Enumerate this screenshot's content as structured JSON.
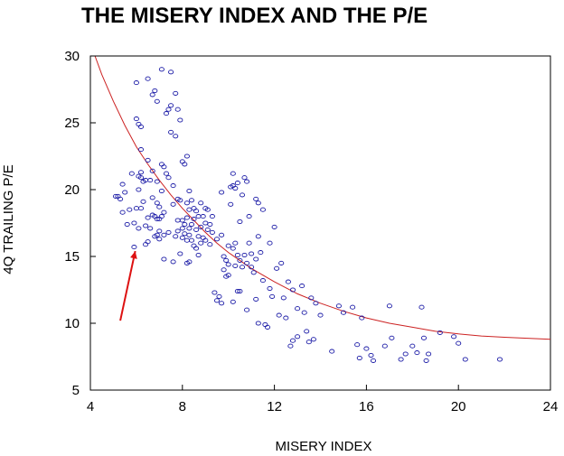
{
  "chart_data": {
    "type": "scatter",
    "title": "THE MISERY INDEX AND THE P/E",
    "xlabel": "MISERY INDEX",
    "ylabel": "4Q TRAILING P/E",
    "xlim": [
      4,
      24
    ],
    "ylim": [
      5,
      30
    ],
    "xticks": [
      4,
      8,
      12,
      16,
      20,
      24
    ],
    "yticks": [
      5,
      10,
      15,
      20,
      25,
      30
    ],
    "grid": false,
    "marker_color": "#1a1aa6",
    "curve_color": "#cc2222",
    "arrow_color": "#dd1111",
    "arrow_from": [
      5.3,
      10.2
    ],
    "arrow_to": [
      5.95,
      15.4
    ],
    "fit_curve": [
      [
        4.2,
        30.0
      ],
      [
        4.5,
        28.6
      ],
      [
        5,
        26.6
      ],
      [
        5.5,
        24.8
      ],
      [
        6,
        23.2
      ],
      [
        6.5,
        21.9
      ],
      [
        7,
        20.7
      ],
      [
        7.5,
        19.6
      ],
      [
        8,
        18.6
      ],
      [
        8.5,
        17.7
      ],
      [
        9,
        16.8
      ],
      [
        9.5,
        16.0
      ],
      [
        10,
        15.3
      ],
      [
        11,
        14.1
      ],
      [
        12,
        13.1
      ],
      [
        13,
        12.2
      ],
      [
        14,
        11.5
      ],
      [
        15,
        10.9
      ],
      [
        16,
        10.4
      ],
      [
        17,
        10.0
      ],
      [
        18,
        9.7
      ],
      [
        19,
        9.4
      ],
      [
        20,
        9.2
      ],
      [
        21,
        9.05
      ],
      [
        22,
        8.95
      ],
      [
        23,
        8.88
      ],
      [
        24,
        8.8
      ]
    ],
    "points": [
      [
        5.1,
        19.5
      ],
      [
        5.2,
        19.5
      ],
      [
        5.3,
        19.3
      ],
      [
        5.4,
        20.4
      ],
      [
        5.4,
        18.3
      ],
      [
        5.5,
        19.8
      ],
      [
        5.6,
        17.4
      ],
      [
        5.7,
        18.5
      ],
      [
        5.8,
        21.2
      ],
      [
        5.9,
        17.5
      ],
      [
        5.9,
        15.7
      ],
      [
        6.0,
        28.0
      ],
      [
        6.0,
        25.3
      ],
      [
        6.0,
        18.6
      ],
      [
        6.1,
        24.9
      ],
      [
        6.1,
        21.0
      ],
      [
        6.1,
        20.0
      ],
      [
        6.1,
        17.1
      ],
      [
        6.2,
        24.7
      ],
      [
        6.2,
        23.0
      ],
      [
        6.2,
        21.3
      ],
      [
        6.2,
        20.9
      ],
      [
        6.2,
        18.6
      ],
      [
        6.3,
        20.6
      ],
      [
        6.3,
        19.1
      ],
      [
        6.4,
        20.7
      ],
      [
        6.4,
        17.3
      ],
      [
        6.4,
        15.9
      ],
      [
        6.5,
        28.3
      ],
      [
        6.5,
        22.2
      ],
      [
        6.5,
        17.9
      ],
      [
        6.5,
        16.1
      ],
      [
        6.6,
        20.7
      ],
      [
        6.6,
        17.1
      ],
      [
        6.7,
        27.1
      ],
      [
        6.7,
        21.4
      ],
      [
        6.7,
        19.4
      ],
      [
        6.7,
        18.1
      ],
      [
        6.8,
        27.4
      ],
      [
        6.8,
        18.0
      ],
      [
        6.8,
        16.5
      ],
      [
        6.9,
        26.6
      ],
      [
        6.9,
        20.6
      ],
      [
        6.9,
        19.0
      ],
      [
        6.9,
        17.8
      ],
      [
        6.9,
        16.6
      ],
      [
        7.0,
        18.7
      ],
      [
        7.0,
        17.8
      ],
      [
        7.0,
        16.9
      ],
      [
        7.0,
        16.3
      ],
      [
        7.1,
        29.0
      ],
      [
        7.1,
        21.9
      ],
      [
        7.1,
        19.9
      ],
      [
        7.1,
        18.0
      ],
      [
        7.2,
        21.7
      ],
      [
        7.2,
        18.3
      ],
      [
        7.2,
        16.6
      ],
      [
        7.2,
        14.8
      ],
      [
        7.3,
        25.7
      ],
      [
        7.3,
        21.2
      ],
      [
        7.4,
        26.0
      ],
      [
        7.4,
        20.9
      ],
      [
        7.4,
        16.8
      ],
      [
        7.5,
        28.8
      ],
      [
        7.5,
        26.3
      ],
      [
        7.5,
        24.3
      ],
      [
        7.6,
        20.3
      ],
      [
        7.6,
        18.9
      ],
      [
        7.6,
        14.6
      ],
      [
        7.7,
        27.2
      ],
      [
        7.7,
        24.0
      ],
      [
        7.7,
        16.5
      ],
      [
        7.8,
        26.0
      ],
      [
        7.8,
        19.3
      ],
      [
        7.8,
        17.7
      ],
      [
        7.8,
        16.9
      ],
      [
        7.9,
        25.2
      ],
      [
        7.9,
        19.2
      ],
      [
        7.9,
        15.2
      ],
      [
        8.0,
        22.1
      ],
      [
        8.0,
        17.7
      ],
      [
        8.0,
        17.1
      ],
      [
        8.0,
        16.4
      ],
      [
        8.1,
        21.9
      ],
      [
        8.1,
        17.4
      ],
      [
        8.1,
        16.7
      ],
      [
        8.2,
        22.5
      ],
      [
        8.2,
        19.0
      ],
      [
        8.2,
        17.9
      ],
      [
        8.2,
        16.2
      ],
      [
        8.2,
        14.5
      ],
      [
        8.3,
        19.9
      ],
      [
        8.3,
        18.5
      ],
      [
        8.3,
        17.1
      ],
      [
        8.3,
        16.6
      ],
      [
        8.3,
        14.6
      ],
      [
        8.4,
        19.2
      ],
      [
        8.4,
        17.4
      ],
      [
        8.4,
        16.2
      ],
      [
        8.5,
        18.6
      ],
      [
        8.5,
        17.8
      ],
      [
        8.5,
        15.8
      ],
      [
        8.6,
        18.4
      ],
      [
        8.6,
        17.0
      ],
      [
        8.6,
        15.6
      ],
      [
        8.7,
        18.0
      ],
      [
        8.7,
        16.5
      ],
      [
        8.7,
        15.1
      ],
      [
        8.8,
        19.0
      ],
      [
        8.8,
        17.2
      ],
      [
        8.8,
        16.0
      ],
      [
        8.9,
        18.0
      ],
      [
        8.9,
        16.4
      ],
      [
        9.0,
        18.6
      ],
      [
        9.0,
        17.5
      ],
      [
        9.0,
        16.2
      ],
      [
        9.1,
        18.5
      ],
      [
        9.1,
        17.0
      ],
      [
        9.2,
        17.4
      ],
      [
        9.2,
        15.9
      ],
      [
        9.3,
        18.0
      ],
      [
        9.3,
        16.8
      ],
      [
        9.4,
        12.3
      ],
      [
        9.5,
        16.3
      ],
      [
        9.5,
        11.7
      ],
      [
        9.6,
        12.0
      ],
      [
        9.7,
        19.8
      ],
      [
        9.7,
        16.6
      ],
      [
        9.7,
        11.5
      ],
      [
        9.8,
        15.0
      ],
      [
        9.8,
        14.0
      ],
      [
        9.9,
        14.7
      ],
      [
        9.9,
        13.5
      ],
      [
        10.0,
        15.8
      ],
      [
        10.0,
        14.4
      ],
      [
        10.0,
        13.6
      ],
      [
        10.1,
        20.2
      ],
      [
        10.1,
        18.9
      ],
      [
        10.2,
        21.2
      ],
      [
        10.2,
        20.3
      ],
      [
        10.2,
        15.6
      ],
      [
        10.2,
        11.6
      ],
      [
        10.3,
        20.1
      ],
      [
        10.3,
        16.0
      ],
      [
        10.3,
        14.3
      ],
      [
        10.4,
        20.5
      ],
      [
        10.4,
        15.1
      ],
      [
        10.4,
        12.4
      ],
      [
        10.5,
        17.6
      ],
      [
        10.5,
        14.7
      ],
      [
        10.5,
        12.4
      ],
      [
        10.6,
        19.6
      ],
      [
        10.6,
        14.2
      ],
      [
        10.7,
        20.9
      ],
      [
        10.7,
        15.1
      ],
      [
        10.8,
        20.6
      ],
      [
        10.8,
        14.5
      ],
      [
        10.8,
        11.0
      ],
      [
        10.9,
        18.0
      ],
      [
        10.9,
        16.0
      ],
      [
        11.0,
        15.2
      ],
      [
        11.0,
        14.2
      ],
      [
        11.1,
        13.8
      ],
      [
        11.2,
        19.3
      ],
      [
        11.2,
        14.8
      ],
      [
        11.2,
        11.8
      ],
      [
        11.3,
        19.0
      ],
      [
        11.3,
        16.5
      ],
      [
        11.3,
        10.0
      ],
      [
        11.4,
        15.3
      ],
      [
        11.5,
        18.5
      ],
      [
        11.5,
        13.2
      ],
      [
        11.6,
        9.9
      ],
      [
        11.7,
        9.7
      ],
      [
        11.8,
        16.0
      ],
      [
        11.8,
        12.6
      ],
      [
        11.9,
        12.0
      ],
      [
        12.0,
        17.2
      ],
      [
        12.1,
        14.1
      ],
      [
        12.2,
        10.6
      ],
      [
        12.3,
        14.5
      ],
      [
        12.4,
        11.9
      ],
      [
        12.5,
        10.4
      ],
      [
        12.6,
        13.1
      ],
      [
        12.7,
        8.3
      ],
      [
        12.8,
        12.5
      ],
      [
        12.8,
        8.7
      ],
      [
        13.0,
        11.1
      ],
      [
        13.0,
        9.0
      ],
      [
        13.2,
        12.8
      ],
      [
        13.3,
        10.8
      ],
      [
        13.4,
        9.4
      ],
      [
        13.5,
        8.6
      ],
      [
        13.6,
        11.9
      ],
      [
        13.7,
        8.8
      ],
      [
        13.8,
        11.5
      ],
      [
        14.0,
        10.6
      ],
      [
        14.5,
        7.9
      ],
      [
        14.8,
        11.3
      ],
      [
        15.0,
        10.8
      ],
      [
        15.4,
        11.2
      ],
      [
        15.6,
        8.4
      ],
      [
        15.7,
        7.4
      ],
      [
        15.8,
        10.4
      ],
      [
        16.0,
        8.1
      ],
      [
        16.2,
        7.6
      ],
      [
        16.3,
        7.2
      ],
      [
        16.8,
        8.3
      ],
      [
        17.0,
        11.3
      ],
      [
        17.1,
        8.9
      ],
      [
        17.5,
        7.3
      ],
      [
        17.7,
        7.7
      ],
      [
        18.0,
        8.3
      ],
      [
        18.2,
        7.8
      ],
      [
        18.4,
        11.2
      ],
      [
        18.5,
        8.9
      ],
      [
        18.6,
        7.2
      ],
      [
        18.7,
        7.7
      ],
      [
        19.2,
        9.3
      ],
      [
        19.8,
        9.0
      ],
      [
        20.0,
        8.5
      ],
      [
        20.3,
        7.3
      ],
      [
        21.8,
        7.3
      ]
    ]
  }
}
